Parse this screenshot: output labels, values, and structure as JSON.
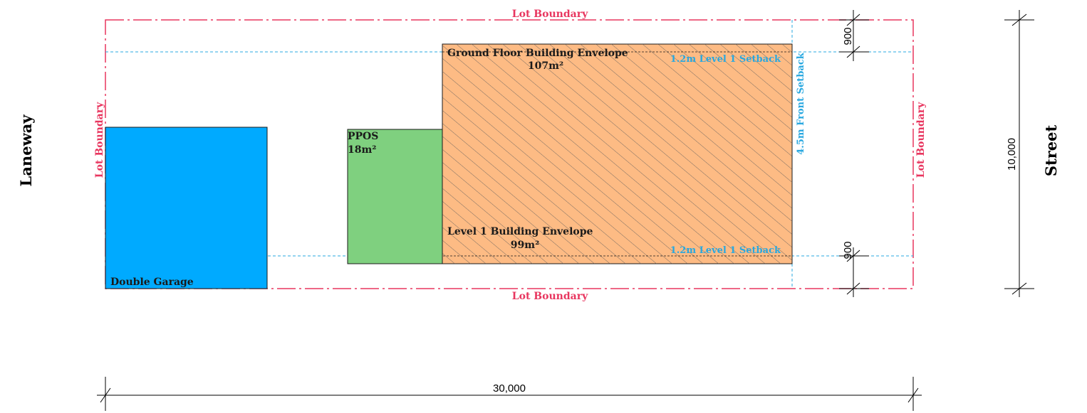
{
  "colors": {
    "lot_boundary": "#e8365f",
    "setback": "#29a8e0",
    "garage": "#00aaff",
    "ppos": "#7fd07f",
    "envelope": "#fdbb84",
    "dimension": "#000000"
  },
  "sides": {
    "left": "Laneway",
    "right": "Street"
  },
  "lot_boundary": {
    "top": "Lot Boundary",
    "bottom": "Lot Boundary",
    "left": "Lot Boundary",
    "right": "Lot Boundary"
  },
  "setbacks": {
    "level1_top": "1.2m Level 1 Setback",
    "level1_bottom": "1.2m Level 1 Setback",
    "front": "4.5m Front Setback"
  },
  "areas": {
    "garage": {
      "label": "Double Garage"
    },
    "ppos": {
      "label": "PPOS",
      "area": "18m²"
    },
    "ground_floor": {
      "label": "Ground Floor Building Envelope",
      "area": "107m²"
    },
    "level1": {
      "label": "Level 1 Building Envelope",
      "area": "99m²"
    }
  },
  "dimensions": {
    "width": "30,000",
    "depth": "10,000",
    "side_setback_top": "900",
    "side_setback_bottom": "900"
  }
}
